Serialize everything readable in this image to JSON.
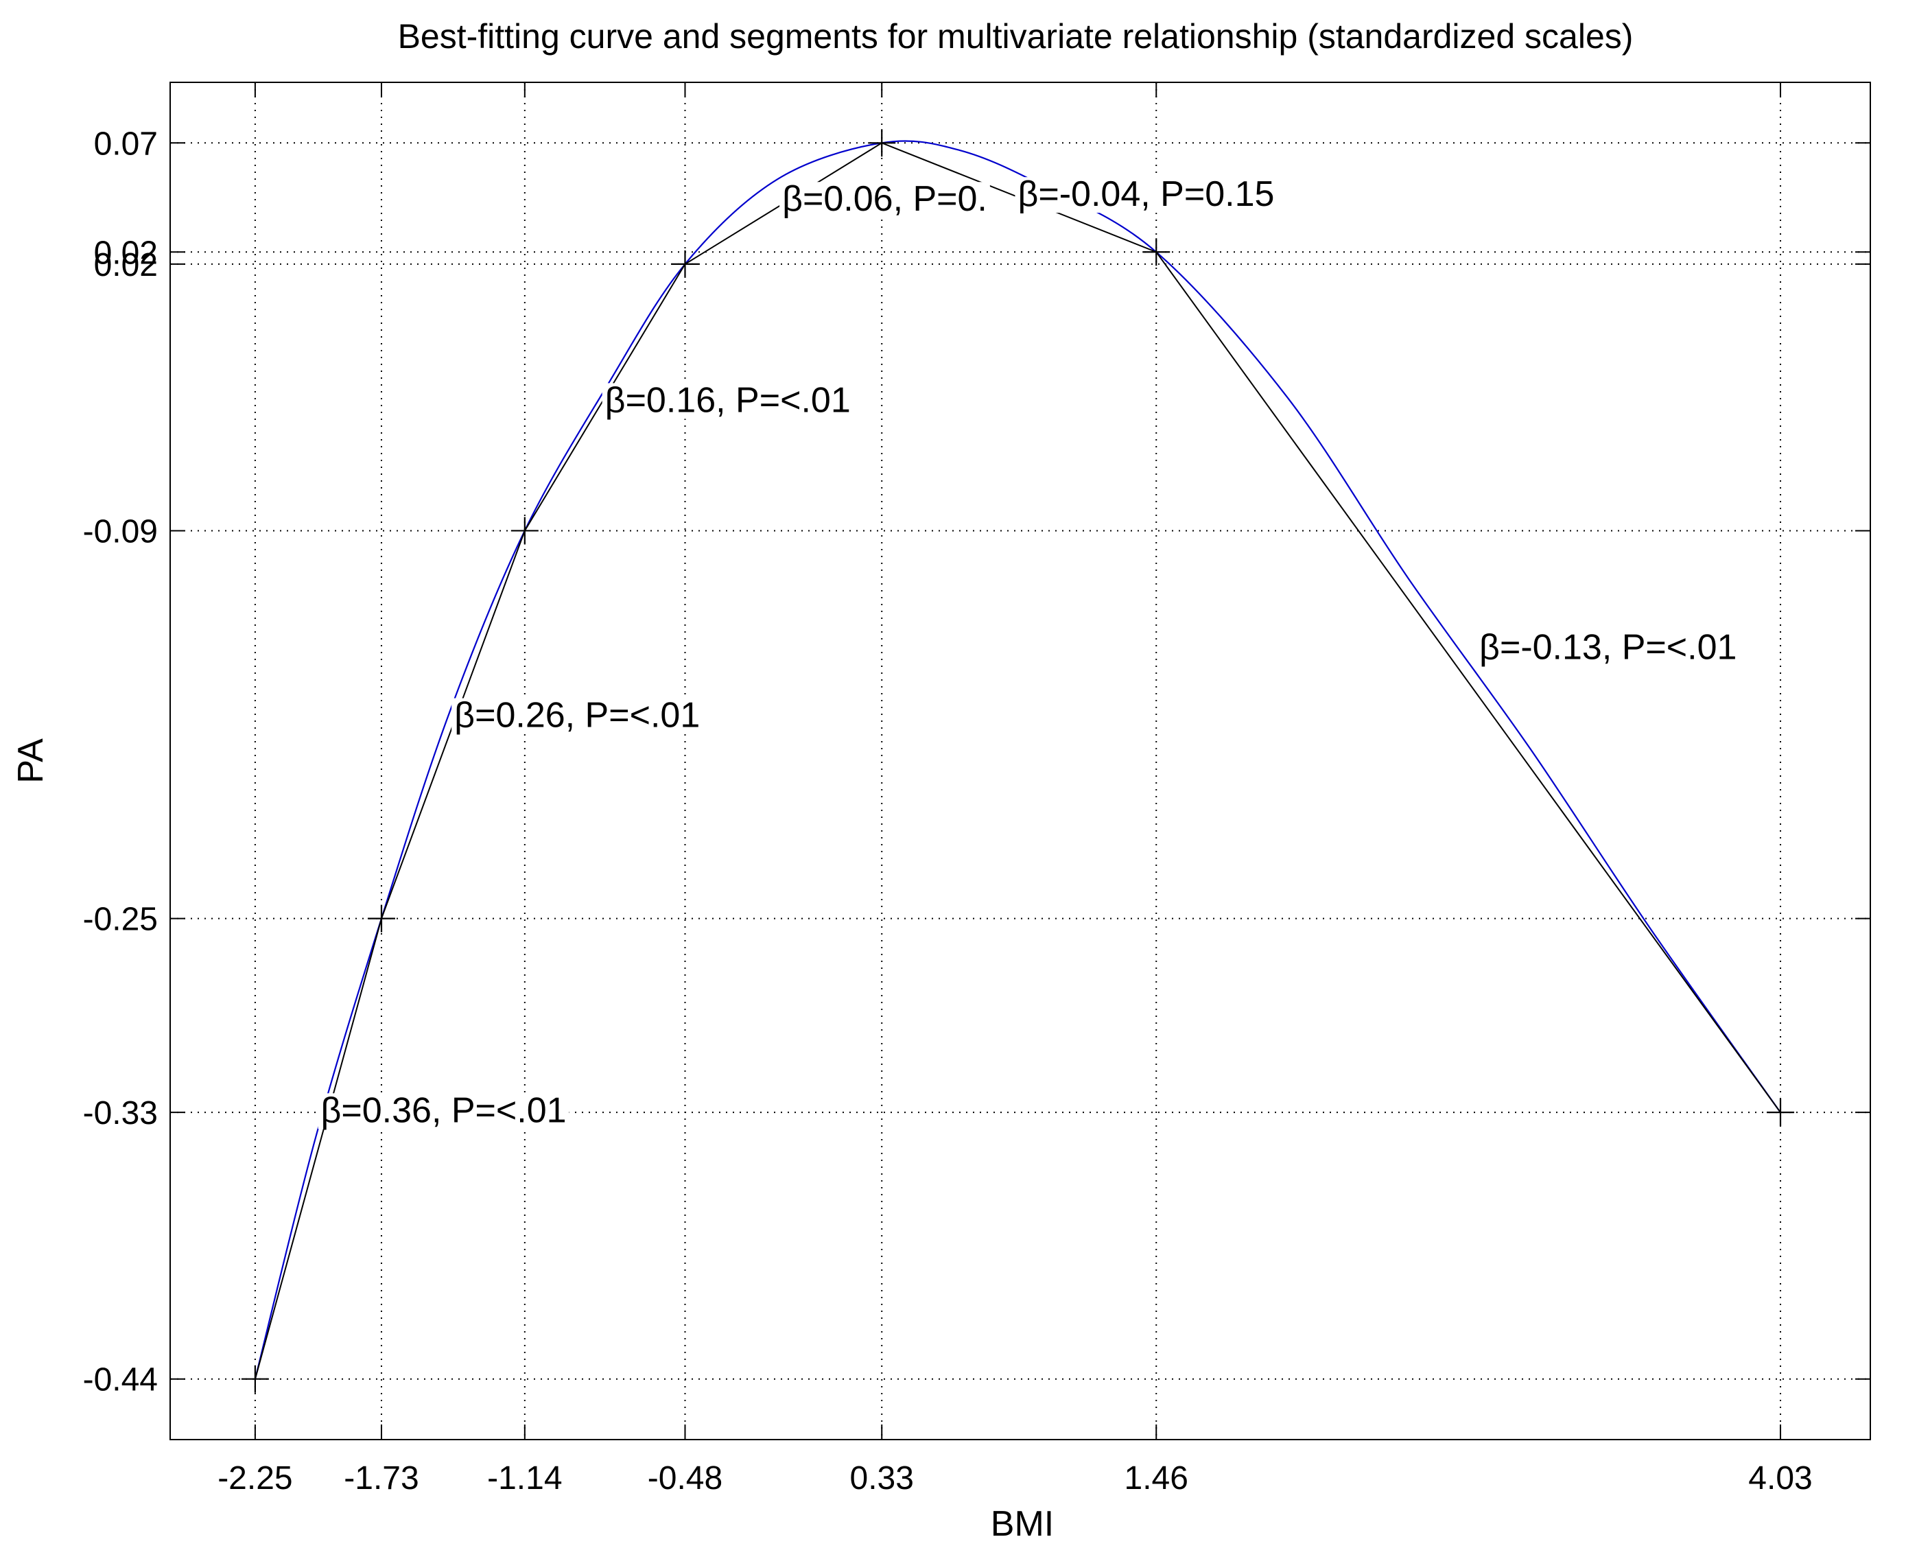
{
  "chart_data": {
    "type": "line",
    "title": "Best-fitting curve and segments for multivariate relationship (standardized scales)",
    "xlabel": "BMI",
    "ylabel": "PA",
    "xlim": [
      -2.6,
      4.4
    ],
    "ylim": [
      -0.465,
      0.095
    ],
    "grid": true,
    "x_ticks": [
      -2.25,
      -1.73,
      -1.14,
      -0.48,
      0.33,
      1.46,
      4.03
    ],
    "x_tick_labels": [
      "-2.25",
      "-1.73",
      "-1.14",
      "-0.48",
      "0.33",
      "1.46",
      "4.03"
    ],
    "y_ticks": [
      -0.44,
      -0.33,
      -0.25,
      -0.09,
      0.02,
      0.025,
      0.07
    ],
    "y_tick_labels": [
      "-0.44",
      "-0.33",
      "-0.25",
      "-0.09",
      "0.02",
      "0.02",
      "0.07"
    ],
    "curve": {
      "color": "#0000cc",
      "x": [
        -2.25,
        -2.0,
        -1.73,
        -1.45,
        -1.14,
        -0.8,
        -0.48,
        -0.1,
        0.33,
        0.65,
        1.0,
        1.46,
        2.0,
        2.5,
        3.0,
        3.5,
        4.03
      ],
      "y": [
        -0.44,
        -0.34,
        -0.25,
        -0.165,
        -0.09,
        -0.03,
        0.02,
        0.055,
        0.07,
        0.067,
        0.052,
        0.025,
        -0.035,
        -0.11,
        -0.18,
        -0.255,
        -0.33
      ],
      "gaps_at_labels": true
    },
    "segments": {
      "color": "#000000",
      "points": [
        {
          "x": -2.25,
          "y": -0.44
        },
        {
          "x": -1.73,
          "y": -0.25
        },
        {
          "x": -1.14,
          "y": -0.09
        },
        {
          "x": -0.48,
          "y": 0.02
        },
        {
          "x": 0.33,
          "y": 0.07
        },
        {
          "x": 1.46,
          "y": 0.025
        },
        {
          "x": 4.03,
          "y": -0.33
        }
      ]
    },
    "annotations": [
      {
        "text": "β=0.36, P=<.01",
        "x": -1.98,
        "y": -0.334
      },
      {
        "text": "β=0.26, P=<.01",
        "x": -1.43,
        "y": -0.171
      },
      {
        "text": "β=0.16, P=<.01",
        "x": -0.81,
        "y": -0.041
      },
      {
        "text": "β=0.06, P=0.",
        "x": -0.08,
        "y": 0.042
      },
      {
        "text": "β=-0.04, P=0.15",
        "x": 0.89,
        "y": 0.044
      },
      {
        "text": "β=-0.13, P=<.01",
        "x": 2.79,
        "y": -0.143
      }
    ]
  }
}
